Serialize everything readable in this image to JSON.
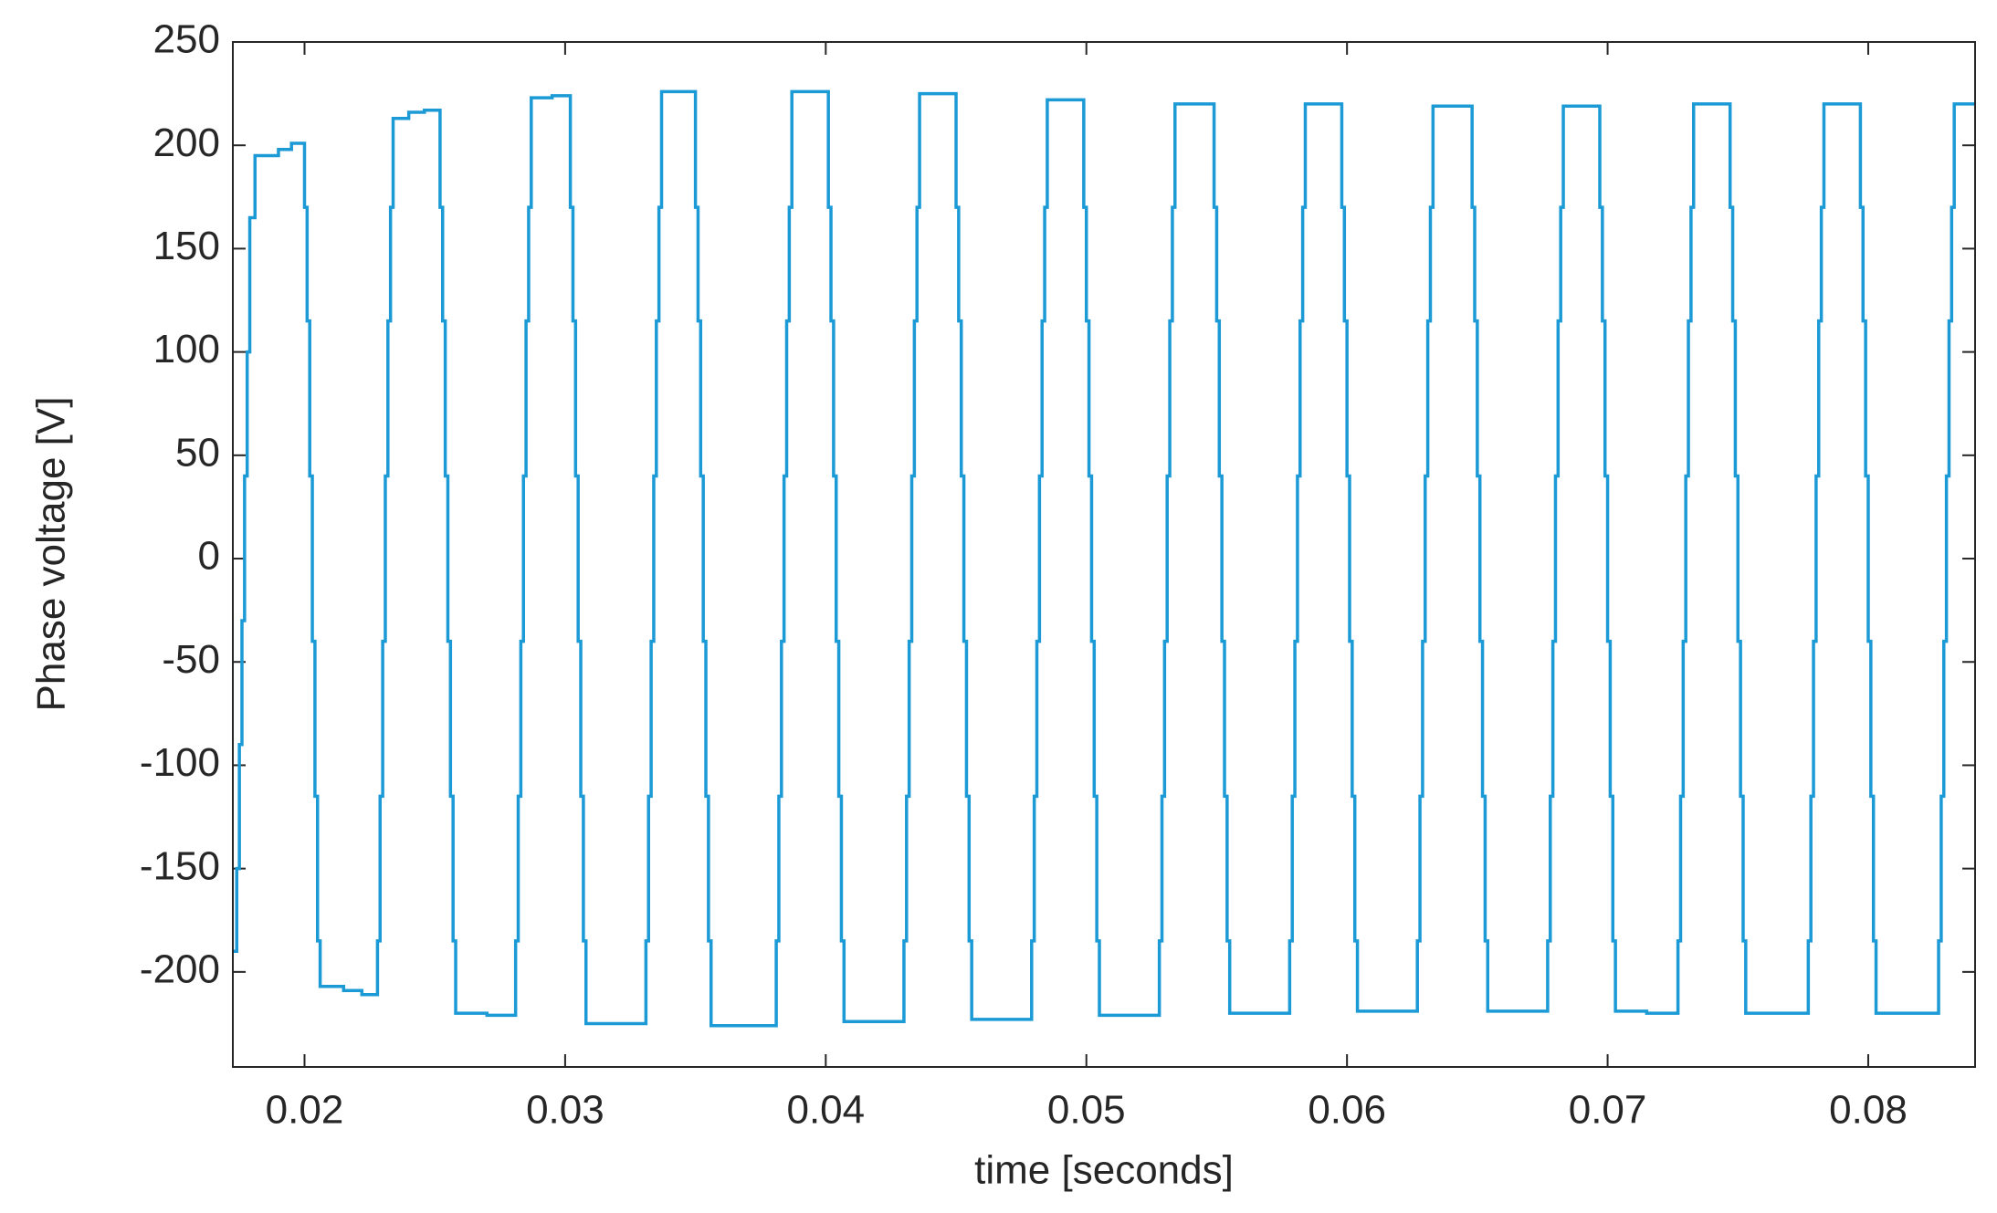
{
  "chart_data": {
    "type": "line",
    "step": "post",
    "color": "#1b9ad6",
    "xlabel": "time [seconds]",
    "ylabel": "Phase voltage [V]",
    "xlim": [
      0.01725,
      0.0841
    ],
    "ylim": [
      -246,
      250
    ],
    "xticks": [
      0.02,
      0.03,
      0.04,
      0.05,
      0.06,
      0.07,
      0.08
    ],
    "yticks": [
      -200,
      -150,
      -100,
      -50,
      0,
      50,
      100,
      150,
      200,
      250
    ],
    "grid": false,
    "box": true,
    "x": [
      0.01725,
      0.0174,
      0.0175,
      0.0176,
      0.0177,
      0.0178,
      0.0179,
      0.0181,
      0.019,
      0.0195,
      0.02,
      0.0201,
      0.0202,
      0.0203,
      0.0204,
      0.0205,
      0.0206,
      0.0215,
      0.0222,
      0.0228,
      0.0229,
      0.023,
      0.0231,
      0.0232,
      0.0233,
      0.0234,
      0.024,
      0.0246,
      0.0252,
      0.0253,
      0.0254,
      0.0255,
      0.0256,
      0.0257,
      0.0258,
      0.027,
      0.0281,
      0.0282,
      0.0283,
      0.0284,
      0.0285,
      0.0286,
      0.0287,
      0.0295,
      0.0302,
      0.0303,
      0.0304,
      0.0305,
      0.0306,
      0.0307,
      0.0308,
      0.0331,
      0.0332,
      0.0333,
      0.0334,
      0.0335,
      0.0336,
      0.0337,
      0.035,
      0.0351,
      0.0352,
      0.0353,
      0.0354,
      0.0355,
      0.0356,
      0.0381,
      0.0382,
      0.0383,
      0.0384,
      0.0385,
      0.0386,
      0.0387,
      0.0401,
      0.0402,
      0.0403,
      0.0404,
      0.0405,
      0.0406,
      0.0407,
      0.043,
      0.0431,
      0.0432,
      0.0433,
      0.0434,
      0.0435,
      0.0436,
      0.045,
      0.0451,
      0.0452,
      0.0453,
      0.0454,
      0.0455,
      0.0456,
      0.0479,
      0.048,
      0.0481,
      0.0482,
      0.0483,
      0.0484,
      0.0485,
      0.0499,
      0.05,
      0.0501,
      0.0502,
      0.0503,
      0.0504,
      0.0505,
      0.0528,
      0.0529,
      0.053,
      0.0531,
      0.0532,
      0.0533,
      0.0534,
      0.0549,
      0.055,
      0.0551,
      0.0552,
      0.0553,
      0.0554,
      0.0555,
      0.0578,
      0.0579,
      0.058,
      0.0581,
      0.0582,
      0.0583,
      0.0584,
      0.0598,
      0.0599,
      0.06,
      0.0601,
      0.0602,
      0.0603,
      0.0604,
      0.0627,
      0.0628,
      0.0629,
      0.063,
      0.0631,
      0.0632,
      0.0633,
      0.0648,
      0.0649,
      0.065,
      0.0651,
      0.0652,
      0.0653,
      0.0654,
      0.0677,
      0.0678,
      0.0679,
      0.068,
      0.0681,
      0.0682,
      0.0683,
      0.0697,
      0.0698,
      0.0699,
      0.07,
      0.0701,
      0.0702,
      0.0703,
      0.0715,
      0.0727,
      0.0728,
      0.0729,
      0.073,
      0.0731,
      0.0732,
      0.0733,
      0.0747,
      0.0748,
      0.0749,
      0.075,
      0.0751,
      0.0752,
      0.0753,
      0.0777,
      0.0778,
      0.0779,
      0.078,
      0.0781,
      0.0782,
      0.0783,
      0.0797,
      0.0798,
      0.0799,
      0.08,
      0.0801,
      0.0802,
      0.0803,
      0.0827,
      0.0828,
      0.0829,
      0.083,
      0.0831,
      0.0832,
      0.0833,
      0.0841
    ],
    "values": [
      -190,
      -150,
      -90,
      -30,
      40,
      100,
      165,
      195,
      198,
      201,
      170,
      115,
      40,
      -40,
      -115,
      -185,
      -207,
      -209,
      -211,
      -185,
      -115,
      -40,
      40,
      115,
      170,
      213,
      216,
      217,
      170,
      115,
      40,
      -40,
      -115,
      -185,
      -220,
      -221,
      -185,
      -115,
      -40,
      40,
      115,
      170,
      223,
      224,
      170,
      115,
      40,
      -40,
      -115,
      -185,
      -225,
      -185,
      -115,
      -40,
      40,
      115,
      170,
      226,
      170,
      115,
      40,
      -40,
      -115,
      -185,
      -226,
      -185,
      -115,
      -40,
      40,
      115,
      170,
      226,
      170,
      115,
      40,
      -40,
      -115,
      -185,
      -224,
      -185,
      -115,
      -40,
      40,
      115,
      170,
      225,
      170,
      115,
      40,
      -40,
      -115,
      -185,
      -223,
      -185,
      -115,
      -40,
      40,
      115,
      170,
      222,
      170,
      115,
      40,
      -40,
      -115,
      -185,
      -221,
      -185,
      -115,
      -40,
      40,
      115,
      170,
      220,
      170,
      115,
      40,
      -40,
      -115,
      -185,
      -220,
      -185,
      -115,
      -40,
      40,
      115,
      170,
      220,
      170,
      115,
      40,
      -40,
      -115,
      -185,
      -219,
      -185,
      -115,
      -40,
      40,
      115,
      170,
      219,
      170,
      115,
      40,
      -40,
      -115,
      -185,
      -219,
      -185,
      -115,
      -40,
      40,
      115,
      170,
      219,
      170,
      115,
      40,
      -40,
      -115,
      -185,
      -219,
      -220,
      -185,
      -115,
      -40,
      40,
      115,
      170,
      220,
      170,
      115,
      40,
      -40,
      -115,
      -185,
      -220,
      -185,
      -115,
      -40,
      40,
      115,
      170,
      220,
      170,
      115,
      40,
      -40,
      -115,
      -185,
      -220,
      -185,
      -115,
      -40,
      40,
      115,
      170,
      220,
      220
    ]
  }
}
